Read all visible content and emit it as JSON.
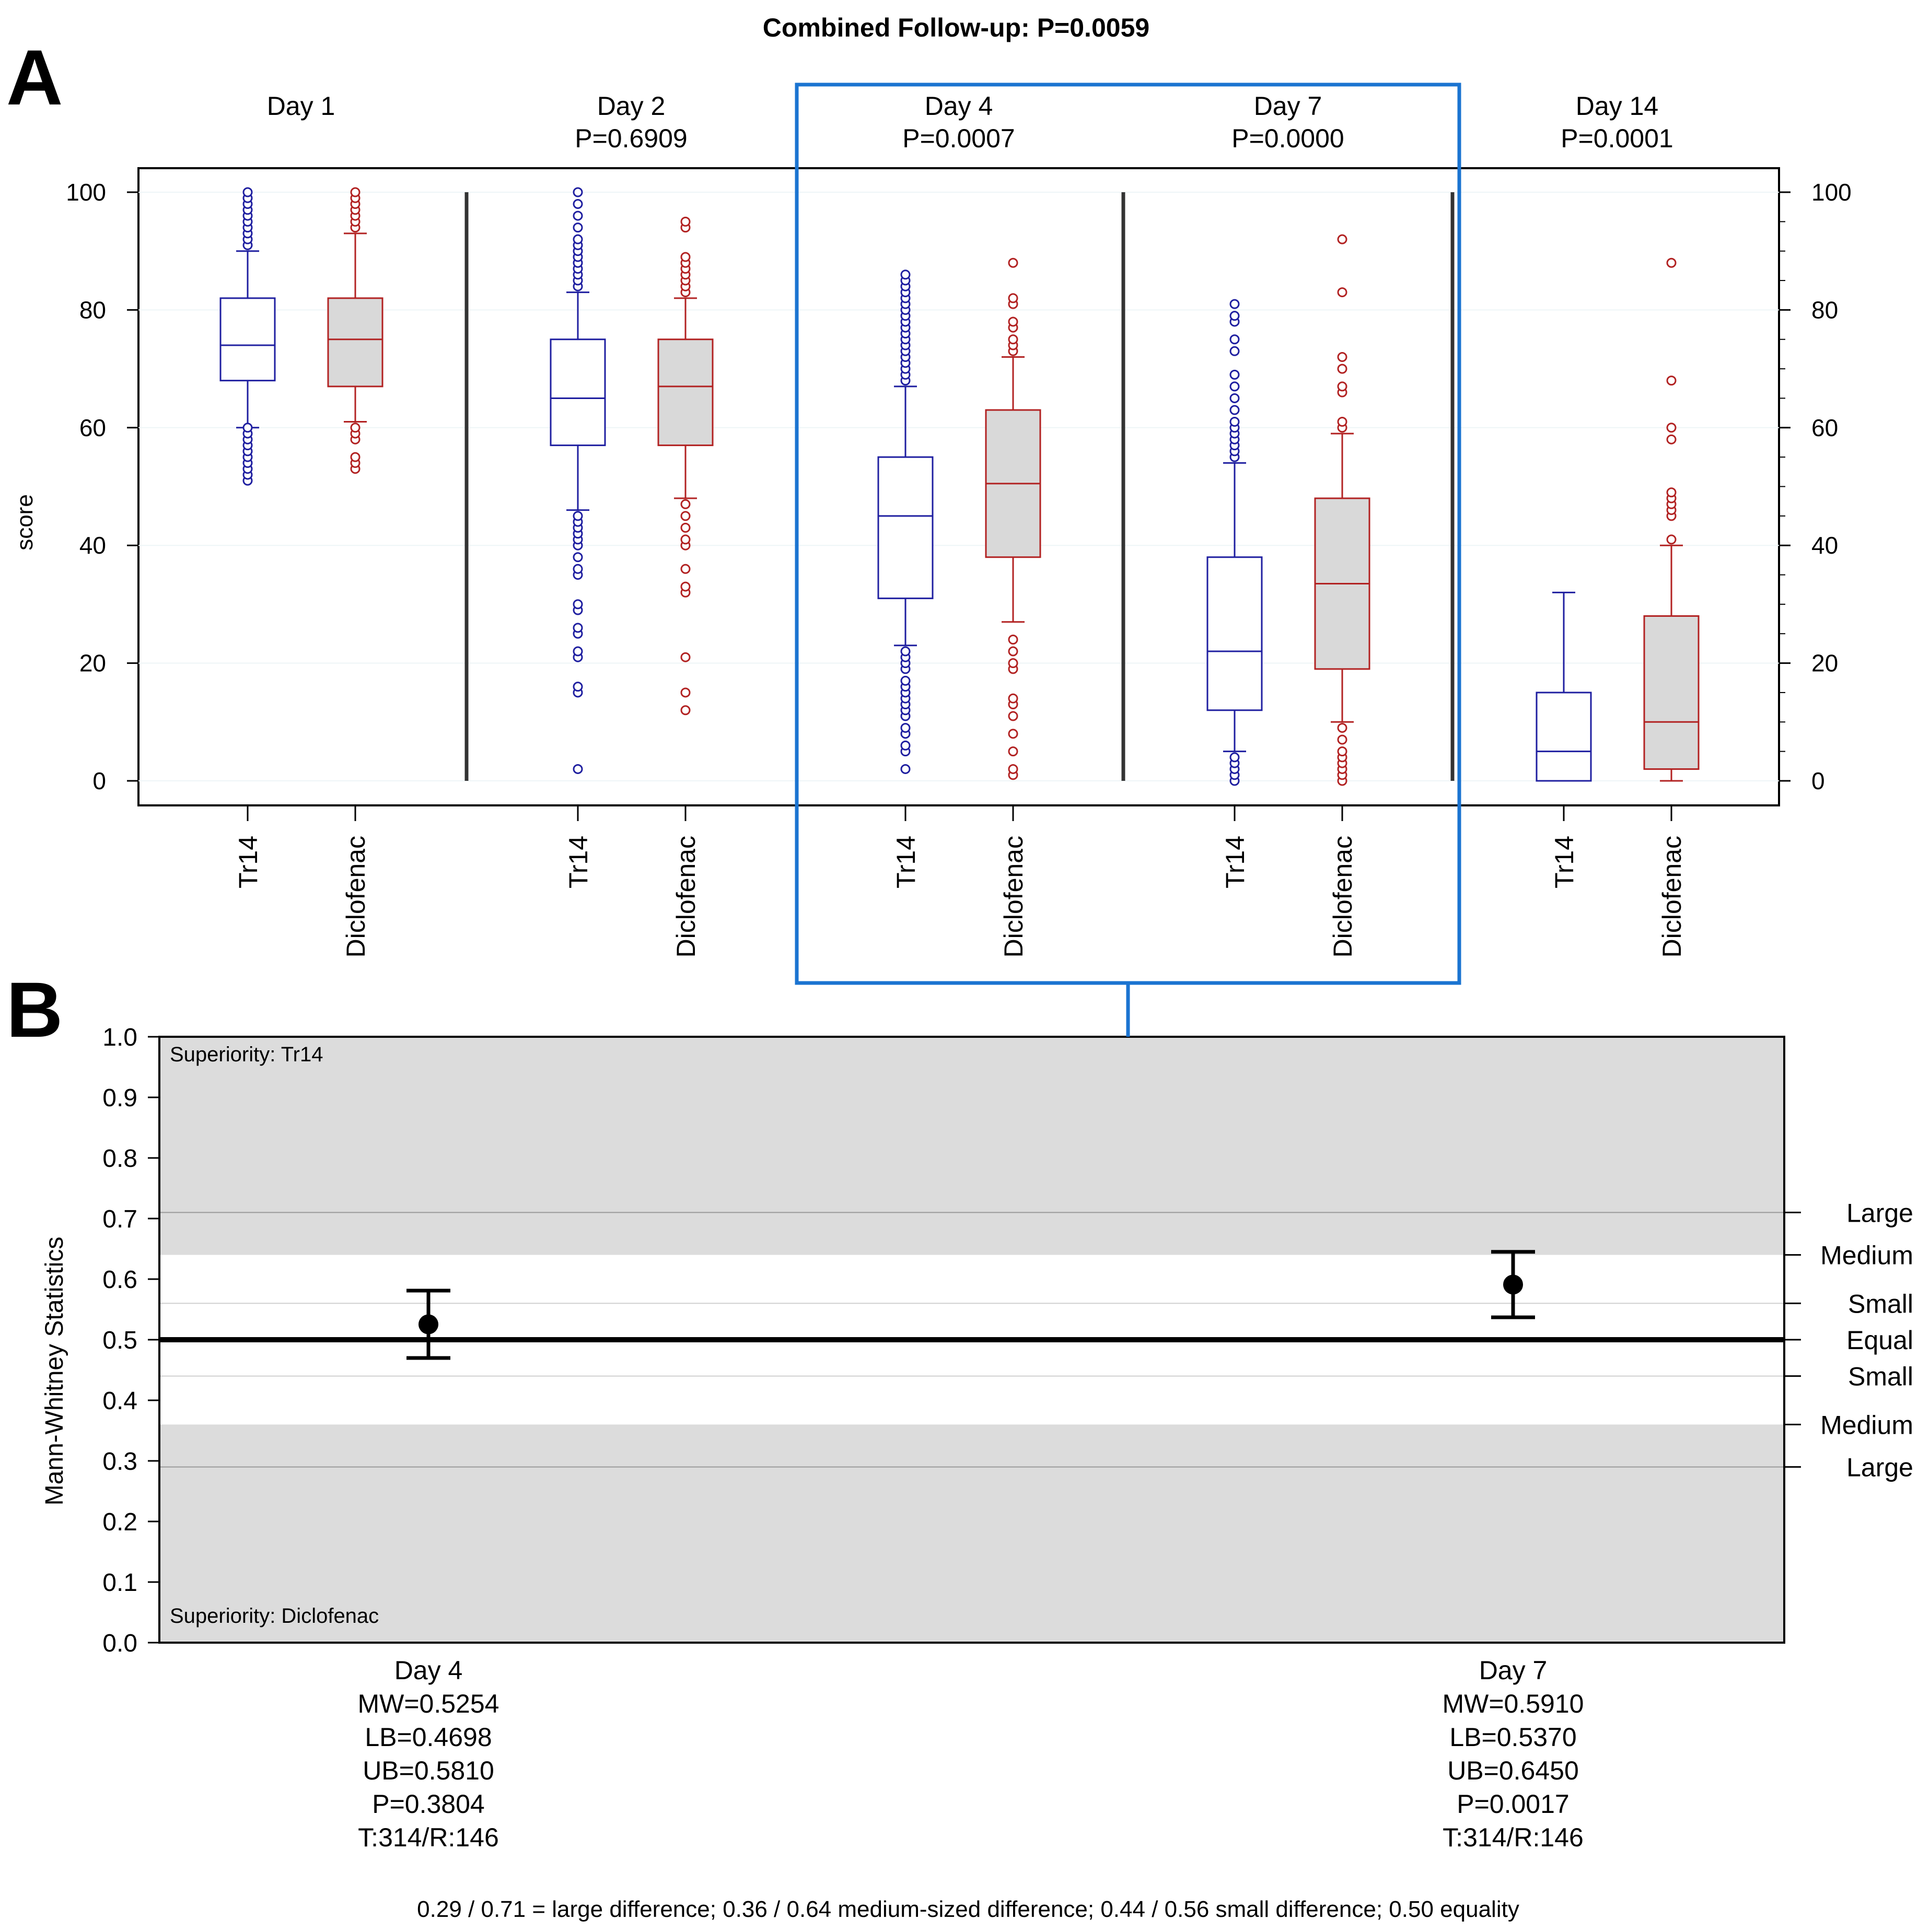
{
  "figure_title": "Combined Follow-up: P=0.0059",
  "colors": {
    "tr14": "#1f1fa0",
    "diclofenac": "#b22222",
    "box_fill_diclofenac": "#d9d9d9",
    "band": "#dcdcdc",
    "highlight": "#1b74d1",
    "separator": "#333333"
  },
  "chart_data": [
    {
      "panel": "A",
      "type": "box",
      "ylabel": "score",
      "ylim": [
        0,
        100
      ],
      "yticks": [
        0,
        20,
        40,
        60,
        80,
        100
      ],
      "highlighted_days": [
        "Day 4",
        "Day 7"
      ],
      "groups": [
        {
          "day": "Day 1",
          "p": "",
          "boxes": [
            {
              "label": "Tr14",
              "series": "tr14",
              "min": 60,
              "q1": 68,
              "median": 74,
              "q3": 82,
              "max": 90,
              "outliers": [
                51,
                52,
                53,
                54,
                55,
                56,
                57,
                58,
                59,
                60,
                91,
                92,
                93,
                94,
                95,
                96,
                97,
                98,
                99,
                100
              ]
            },
            {
              "label": "Diclofenac",
              "series": "diclofenac",
              "min": 61,
              "q1": 67,
              "median": 75,
              "q3": 82,
              "max": 93,
              "outliers": [
                53,
                54,
                55,
                58,
                59,
                60,
                94,
                95,
                96,
                97,
                98,
                99,
                100
              ]
            }
          ]
        },
        {
          "day": "Day 2",
          "p": "P=0.6909",
          "boxes": [
            {
              "label": "Tr14",
              "series": "tr14",
              "min": 46,
              "q1": 57,
              "median": 65,
              "q3": 75,
              "max": 83,
              "outliers": [
                2,
                15,
                16,
                21,
                22,
                25,
                26,
                29,
                30,
                35,
                36,
                38,
                40,
                41,
                42,
                43,
                44,
                45,
                84,
                85,
                86,
                87,
                88,
                89,
                90,
                91,
                92,
                94,
                96,
                98,
                100
              ]
            },
            {
              "label": "Diclofenac",
              "series": "diclofenac",
              "min": 48,
              "q1": 57,
              "median": 67,
              "q3": 75,
              "max": 82,
              "outliers": [
                12,
                15,
                21,
                32,
                33,
                36,
                40,
                41,
                43,
                45,
                47,
                83,
                84,
                85,
                86,
                87,
                88,
                89,
                94,
                95
              ]
            }
          ]
        },
        {
          "day": "Day 4",
          "p": "P=0.0007",
          "boxes": [
            {
              "label": "Tr14",
              "series": "tr14",
              "min": 23,
              "q1": 31,
              "median": 45,
              "q3": 55,
              "max": 67,
              "outliers": [
                2,
                5,
                6,
                8,
                9,
                11,
                12,
                13,
                14,
                15,
                16,
                17,
                19,
                20,
                21,
                22,
                68,
                69,
                70,
                71,
                72,
                73,
                74,
                75,
                76,
                77,
                78,
                79,
                80,
                81,
                82,
                83,
                84,
                85,
                86
              ]
            },
            {
              "label": "Diclofenac",
              "series": "diclofenac",
              "min": 27,
              "q1": 38,
              "median": 50.5,
              "q3": 63,
              "max": 72,
              "outliers": [
                1,
                2,
                5,
                8,
                11,
                13,
                14,
                19,
                20,
                22,
                24,
                73,
                74,
                75,
                77,
                78,
                81,
                82,
                88
              ]
            }
          ]
        },
        {
          "day": "Day 7",
          "p": "P=0.0000",
          "boxes": [
            {
              "label": "Tr14",
              "series": "tr14",
              "min": 5,
              "q1": 12,
              "median": 22,
              "q3": 38,
              "max": 54,
              "outliers": [
                0,
                1,
                2,
                3,
                4,
                55,
                56,
                57,
                58,
                59,
                60,
                61,
                63,
                65,
                67,
                69,
                73,
                75,
                78,
                79,
                81
              ]
            },
            {
              "label": "Diclofenac",
              "series": "diclofenac",
              "min": 10,
              "q1": 19,
              "median": 33.5,
              "q3": 48,
              "max": 59,
              "outliers": [
                0,
                1,
                2,
                3,
                4,
                5,
                7,
                9,
                60,
                61,
                66,
                67,
                70,
                72,
                83,
                92
              ]
            }
          ]
        },
        {
          "day": "Day 14",
          "p": "P=0.0001",
          "boxes": [
            {
              "label": "Tr14",
              "series": "tr14",
              "min": 0,
              "q1": 0,
              "median": 5,
              "q3": 15,
              "max": 32,
              "outliers": []
            },
            {
              "label": "Diclofenac",
              "series": "diclofenac",
              "min": 0,
              "q1": 2,
              "median": 10,
              "q3": 28,
              "max": 40,
              "outliers": [
                41,
                45,
                46,
                47,
                48,
                49,
                58,
                60,
                68,
                88
              ]
            }
          ]
        }
      ]
    },
    {
      "panel": "B",
      "type": "errorbar",
      "ylabel": "Mann-Whitney Statistics",
      "ylim": [
        0,
        1
      ],
      "yticks": [
        0.0,
        0.1,
        0.2,
        0.3,
        0.4,
        0.5,
        0.6,
        0.7,
        0.8,
        0.9,
        1.0
      ],
      "ytick_labels": [
        "0.0",
        "0.1",
        "0.2",
        "0.3",
        "0.4",
        "0.5",
        "0.6",
        "0.7",
        "0.8",
        "0.9",
        "1.0"
      ],
      "band_top_label": "Superiority: Tr14",
      "band_bottom_label": "Superiority: Diclofenac",
      "right_labels": [
        {
          "value": 0.71,
          "label": "Large"
        },
        {
          "value": 0.64,
          "label": "Medium"
        },
        {
          "value": 0.56,
          "label": "Small"
        },
        {
          "value": 0.5,
          "label": "Equal"
        },
        {
          "value": 0.44,
          "label": "Small"
        },
        {
          "value": 0.36,
          "label": "Medium"
        },
        {
          "value": 0.29,
          "label": "Large"
        }
      ],
      "points": [
        {
          "day": "Day 4",
          "mw": 0.5254,
          "lb": 0.4698,
          "ub": 0.581,
          "info": [
            "Day 4",
            "MW=0.5254",
            "LB=0.4698",
            "UB=0.5810",
            "P=0.3804",
            "T:314/R:146"
          ]
        },
        {
          "day": "Day 7",
          "mw": 0.591,
          "lb": 0.537,
          "ub": 0.645,
          "info": [
            "Day 7",
            "MW=0.5910",
            "LB=0.5370",
            "UB=0.6450",
            "P=0.0017",
            "T:314/R:146"
          ]
        }
      ],
      "footnote": "0.29 / 0.71 = large difference; 0.36 / 0.64 medium-sized difference; 0.44 / 0.56 small difference; 0.50 equality"
    }
  ],
  "panel_labels": [
    "A",
    "B"
  ]
}
